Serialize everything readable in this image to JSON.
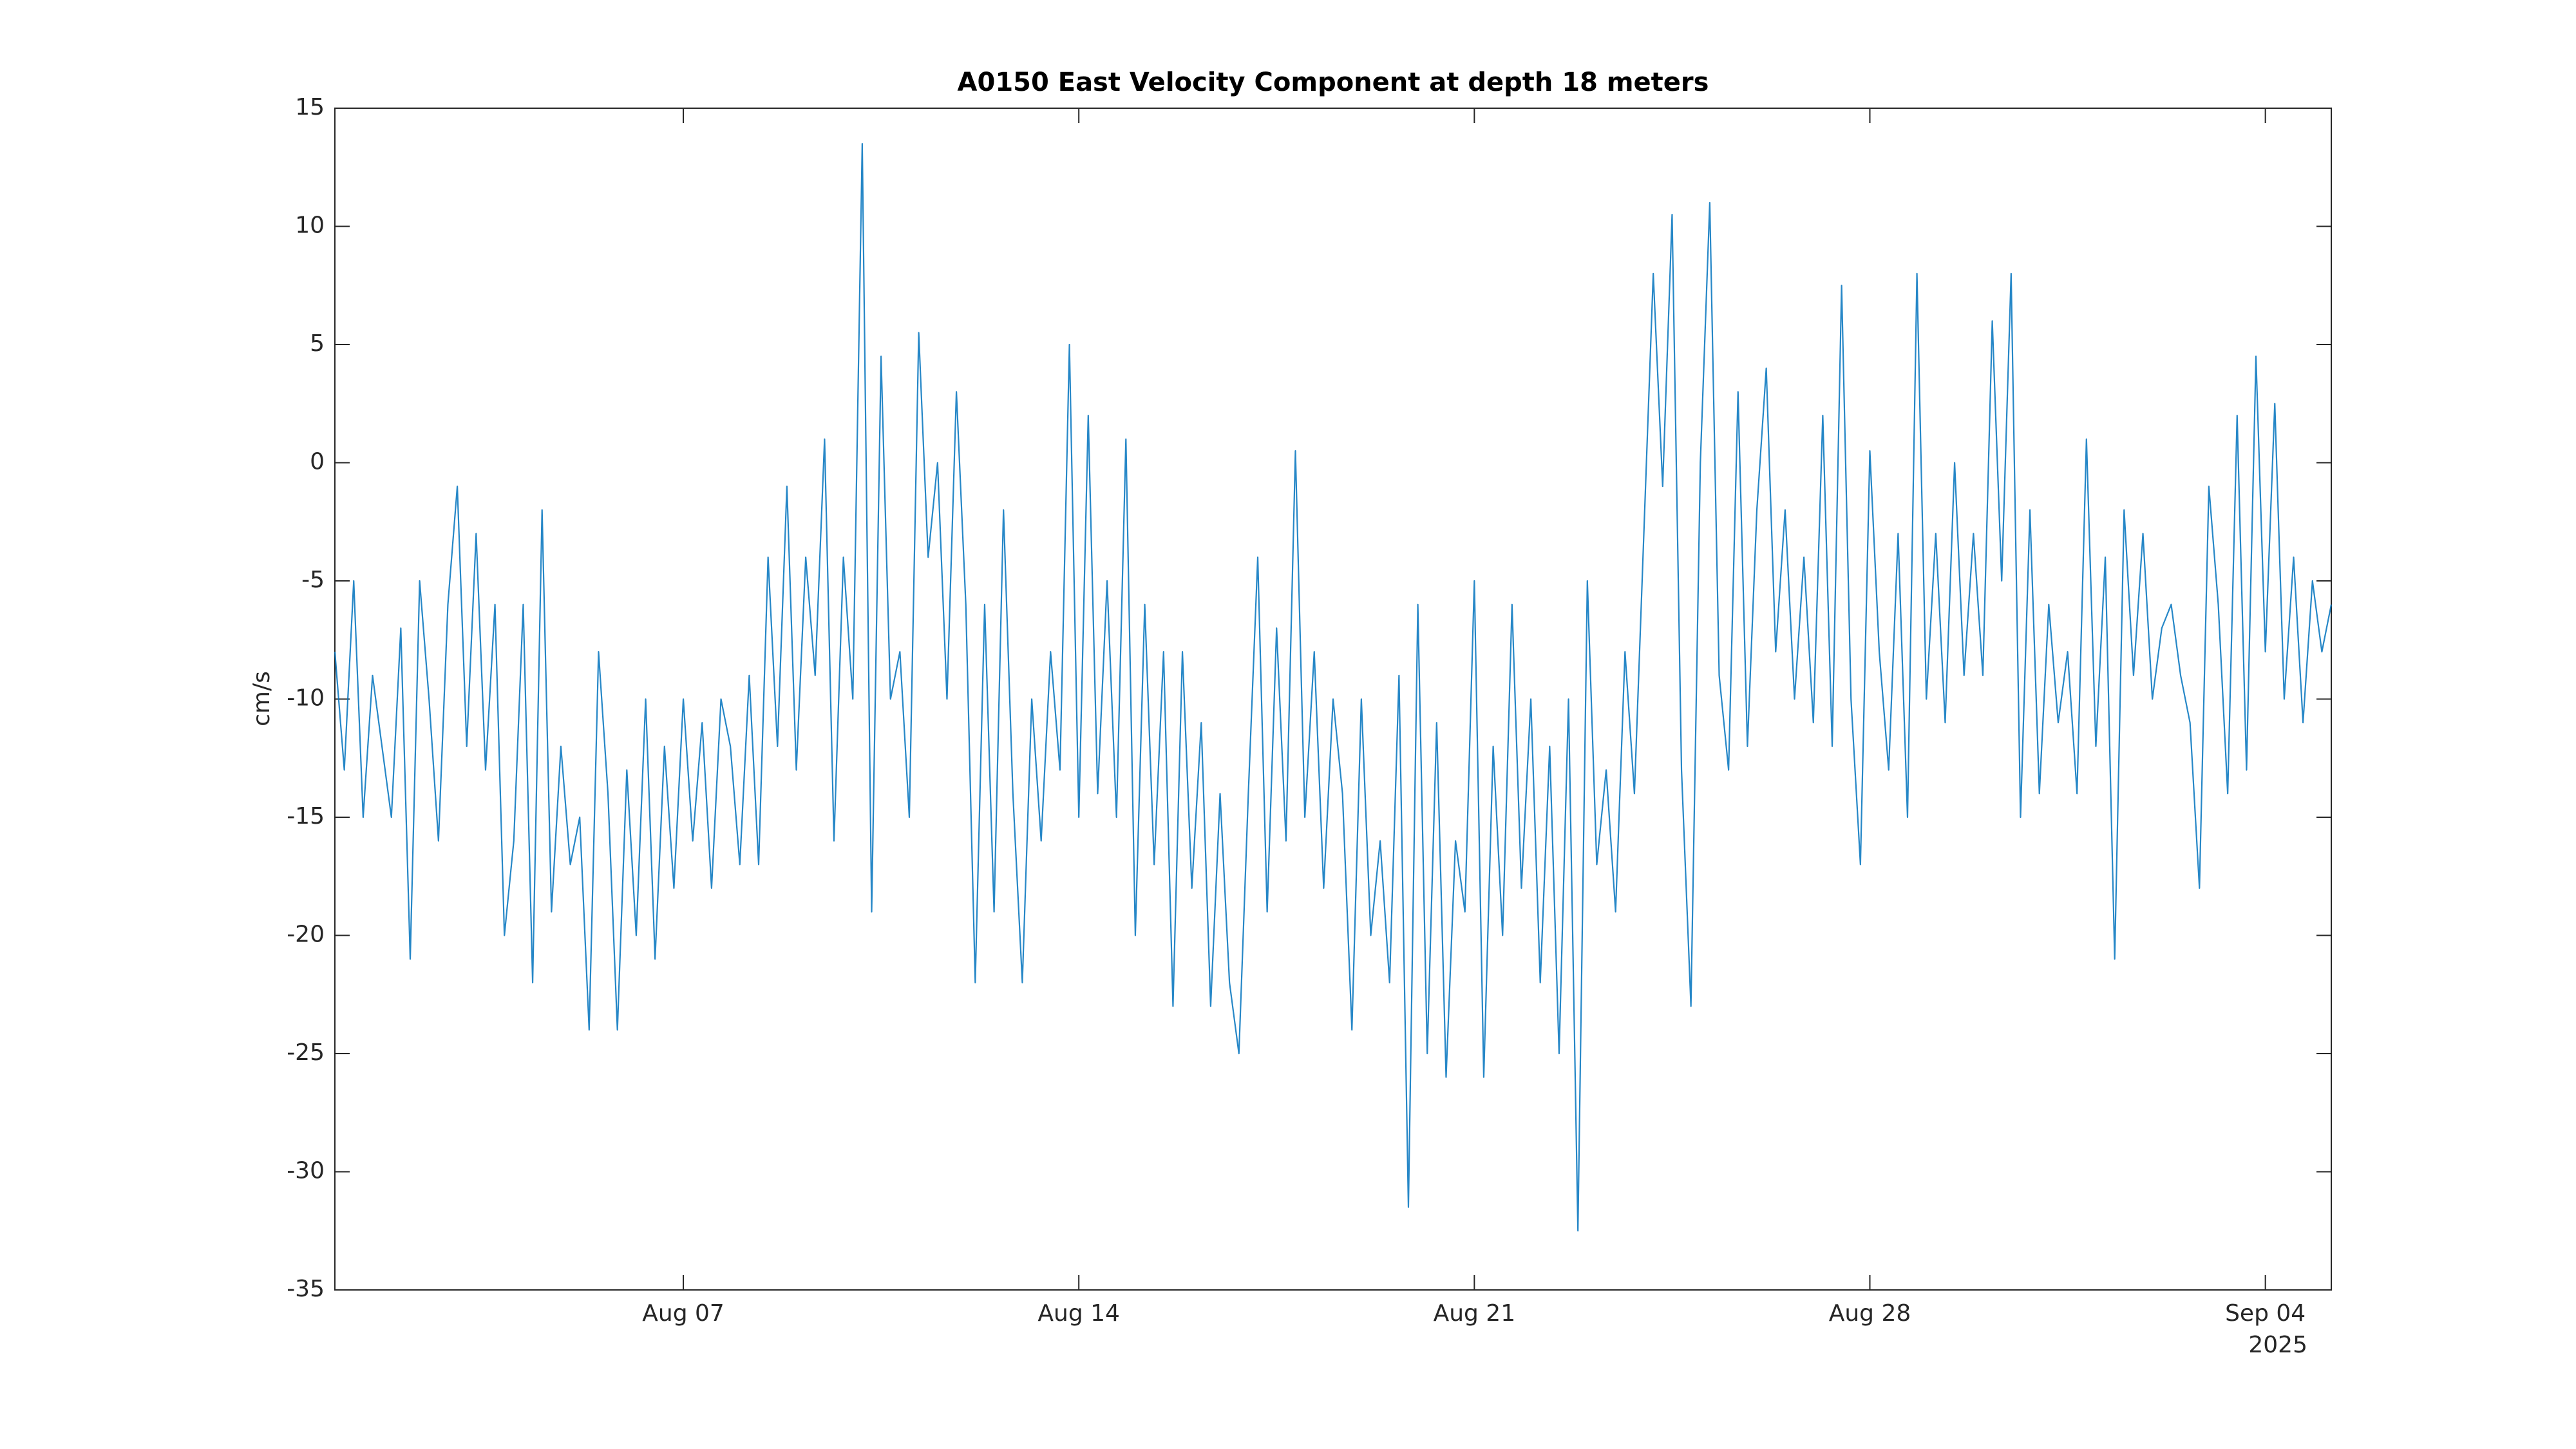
{
  "chart_data": {
    "type": "line",
    "title": "A0150 East Velocity Component at depth 18 meters",
    "ylabel": "cm/s",
    "x_secondary_label": "2025",
    "color": "#0072bd",
    "xlim": [
      "2025-07-31T20:00Z",
      "2025-09-05T04:00Z"
    ],
    "xticks": [
      {
        "value": "2025-08-07T00:00Z",
        "label": "Aug 07"
      },
      {
        "value": "2025-08-14T00:00Z",
        "label": "Aug 14"
      },
      {
        "value": "2025-08-21T00:00Z",
        "label": "Aug 21"
      },
      {
        "value": "2025-08-28T00:00Z",
        "label": "Aug 28"
      },
      {
        "value": "2025-09-04T00:00Z",
        "label": "Sep 04"
      }
    ],
    "ylim": [
      -35,
      15
    ],
    "yticks": [
      -35,
      -30,
      -25,
      -20,
      -15,
      -10,
      -5,
      0,
      5,
      10,
      15
    ],
    "x": [
      "2025-07-31T20:00Z",
      "2025-08-01T00:00Z",
      "2025-08-01T04:00Z",
      "2025-08-01T08:00Z",
      "2025-08-01T12:00Z",
      "2025-08-01T16:00Z",
      "2025-08-01T20:00Z",
      "2025-08-02T00:00Z",
      "2025-08-02T04:00Z",
      "2025-08-02T08:00Z",
      "2025-08-02T12:00Z",
      "2025-08-02T16:00Z",
      "2025-08-02T20:00Z",
      "2025-08-03T00:00Z",
      "2025-08-03T04:00Z",
      "2025-08-03T08:00Z",
      "2025-08-03T12:00Z",
      "2025-08-03T16:00Z",
      "2025-08-03T20:00Z",
      "2025-08-04T00:00Z",
      "2025-08-04T04:00Z",
      "2025-08-04T08:00Z",
      "2025-08-04T12:00Z",
      "2025-08-04T16:00Z",
      "2025-08-04T20:00Z",
      "2025-08-05T00:00Z",
      "2025-08-05T04:00Z",
      "2025-08-05T08:00Z",
      "2025-08-05T12:00Z",
      "2025-08-05T16:00Z",
      "2025-08-05T20:00Z",
      "2025-08-06T00:00Z",
      "2025-08-06T04:00Z",
      "2025-08-06T08:00Z",
      "2025-08-06T12:00Z",
      "2025-08-06T16:00Z",
      "2025-08-06T20:00Z",
      "2025-08-07T00:00Z",
      "2025-08-07T04:00Z",
      "2025-08-07T08:00Z",
      "2025-08-07T12:00Z",
      "2025-08-07T16:00Z",
      "2025-08-07T20:00Z",
      "2025-08-08T00:00Z",
      "2025-08-08T04:00Z",
      "2025-08-08T08:00Z",
      "2025-08-08T12:00Z",
      "2025-08-08T16:00Z",
      "2025-08-08T20:00Z",
      "2025-08-09T00:00Z",
      "2025-08-09T04:00Z",
      "2025-08-09T08:00Z",
      "2025-08-09T12:00Z",
      "2025-08-09T16:00Z",
      "2025-08-09T20:00Z",
      "2025-08-10T00:00Z",
      "2025-08-10T04:00Z",
      "2025-08-10T08:00Z",
      "2025-08-10T12:00Z",
      "2025-08-10T16:00Z",
      "2025-08-10T20:00Z",
      "2025-08-11T00:00Z",
      "2025-08-11T04:00Z",
      "2025-08-11T08:00Z",
      "2025-08-11T12:00Z",
      "2025-08-11T16:00Z",
      "2025-08-11T20:00Z",
      "2025-08-12T00:00Z",
      "2025-08-12T04:00Z",
      "2025-08-12T08:00Z",
      "2025-08-12T12:00Z",
      "2025-08-12T16:00Z",
      "2025-08-12T20:00Z",
      "2025-08-13T00:00Z",
      "2025-08-13T04:00Z",
      "2025-08-13T08:00Z",
      "2025-08-13T12:00Z",
      "2025-08-13T16:00Z",
      "2025-08-13T20:00Z",
      "2025-08-14T00:00Z",
      "2025-08-14T04:00Z",
      "2025-08-14T08:00Z",
      "2025-08-14T12:00Z",
      "2025-08-14T16:00Z",
      "2025-08-14T20:00Z",
      "2025-08-15T00:00Z",
      "2025-08-15T04:00Z",
      "2025-08-15T08:00Z",
      "2025-08-15T12:00Z",
      "2025-08-15T16:00Z",
      "2025-08-15T20:00Z",
      "2025-08-16T00:00Z",
      "2025-08-16T04:00Z",
      "2025-08-16T08:00Z",
      "2025-08-16T12:00Z",
      "2025-08-16T16:00Z",
      "2025-08-16T20:00Z",
      "2025-08-17T00:00Z",
      "2025-08-17T04:00Z",
      "2025-08-17T08:00Z",
      "2025-08-17T12:00Z",
      "2025-08-17T16:00Z",
      "2025-08-17T20:00Z",
      "2025-08-18T00:00Z",
      "2025-08-18T04:00Z",
      "2025-08-18T08:00Z",
      "2025-08-18T12:00Z",
      "2025-08-18T16:00Z",
      "2025-08-18T20:00Z",
      "2025-08-19T00:00Z",
      "2025-08-19T04:00Z",
      "2025-08-19T08:00Z",
      "2025-08-19T12:00Z",
      "2025-08-19T16:00Z",
      "2025-08-19T20:00Z",
      "2025-08-20T00:00Z",
      "2025-08-20T04:00Z",
      "2025-08-20T08:00Z",
      "2025-08-20T12:00Z",
      "2025-08-20T16:00Z",
      "2025-08-20T20:00Z",
      "2025-08-21T00:00Z",
      "2025-08-21T04:00Z",
      "2025-08-21T08:00Z",
      "2025-08-21T12:00Z",
      "2025-08-21T16:00Z",
      "2025-08-21T20:00Z",
      "2025-08-22T00:00Z",
      "2025-08-22T04:00Z",
      "2025-08-22T08:00Z",
      "2025-08-22T12:00Z",
      "2025-08-22T16:00Z",
      "2025-08-22T20:00Z",
      "2025-08-23T00:00Z",
      "2025-08-23T04:00Z",
      "2025-08-23T08:00Z",
      "2025-08-23T12:00Z",
      "2025-08-23T16:00Z",
      "2025-08-23T20:00Z",
      "2025-08-24T00:00Z",
      "2025-08-24T04:00Z",
      "2025-08-24T08:00Z",
      "2025-08-24T12:00Z",
      "2025-08-24T16:00Z",
      "2025-08-24T20:00Z",
      "2025-08-25T00:00Z",
      "2025-08-25T04:00Z",
      "2025-08-25T08:00Z",
      "2025-08-25T12:00Z",
      "2025-08-25T16:00Z",
      "2025-08-25T20:00Z",
      "2025-08-26T00:00Z",
      "2025-08-26T04:00Z",
      "2025-08-26T08:00Z",
      "2025-08-26T12:00Z",
      "2025-08-26T16:00Z",
      "2025-08-26T20:00Z",
      "2025-08-27T00:00Z",
      "2025-08-27T04:00Z",
      "2025-08-27T08:00Z",
      "2025-08-27T12:00Z",
      "2025-08-27T16:00Z",
      "2025-08-27T20:00Z",
      "2025-08-28T00:00Z",
      "2025-08-28T04:00Z",
      "2025-08-28T08:00Z",
      "2025-08-28T12:00Z",
      "2025-08-28T16:00Z",
      "2025-08-28T20:00Z",
      "2025-08-29T00:00Z",
      "2025-08-29T04:00Z",
      "2025-08-29T08:00Z",
      "2025-08-29T12:00Z",
      "2025-08-29T16:00Z",
      "2025-08-29T20:00Z",
      "2025-08-30T00:00Z",
      "2025-08-30T04:00Z",
      "2025-08-30T08:00Z",
      "2025-08-30T12:00Z",
      "2025-08-30T16:00Z",
      "2025-08-30T20:00Z",
      "2025-08-31T00:00Z",
      "2025-08-31T04:00Z",
      "2025-08-31T08:00Z",
      "2025-08-31T12:00Z",
      "2025-08-31T16:00Z",
      "2025-08-31T20:00Z",
      "2025-09-01T00:00Z",
      "2025-09-01T04:00Z",
      "2025-09-01T08:00Z",
      "2025-09-01T12:00Z",
      "2025-09-01T16:00Z",
      "2025-09-01T20:00Z",
      "2025-09-02T00:00Z",
      "2025-09-02T04:00Z",
      "2025-09-02T08:00Z",
      "2025-09-02T12:00Z",
      "2025-09-02T16:00Z",
      "2025-09-02T20:00Z",
      "2025-09-03T00:00Z",
      "2025-09-03T04:00Z",
      "2025-09-03T08:00Z",
      "2025-09-03T12:00Z",
      "2025-09-03T16:00Z",
      "2025-09-03T20:00Z",
      "2025-09-04T00:00Z",
      "2025-09-04T04:00Z",
      "2025-09-04T08:00Z",
      "2025-09-04T12:00Z",
      "2025-09-04T16:00Z",
      "2025-09-04T20:00Z",
      "2025-09-05T00:00Z",
      "2025-09-05T04:00Z"
    ],
    "values": [
      -8,
      -13,
      -5,
      -15,
      -9,
      -12,
      -15,
      -7,
      -21,
      -5,
      -10,
      -16,
      -6,
      -1,
      -12,
      -3,
      -13,
      -6,
      -20,
      -16,
      -6,
      -22,
      -2,
      -19,
      -12,
      -17,
      -15,
      -24,
      -8,
      -14,
      -24,
      -13,
      -20,
      -10,
      -21,
      -12,
      -18,
      -10,
      -16,
      -11,
      -18,
      -10,
      -12,
      -17,
      -9,
      -17,
      -4,
      -12,
      -1,
      -13,
      -4,
      -9,
      1,
      -16,
      -4,
      -10,
      13.5,
      -19,
      4.5,
      -10,
      -8,
      -15,
      5.5,
      -4,
      0,
      -10,
      3,
      -6,
      -22,
      -6,
      -19,
      -2,
      -14,
      -22,
      -10,
      -16,
      -8,
      -13,
      5,
      -15,
      2,
      -14,
      -5,
      -15,
      1,
      -20,
      -6,
      -17,
      -8,
      -23,
      -8,
      -18,
      -11,
      -23,
      -14,
      -22,
      -25,
      -14,
      -4,
      -19,
      -7,
      -16,
      0.5,
      -15,
      -8,
      -18,
      -10,
      -14,
      -24,
      -10,
      -20,
      -16,
      -22,
      -9,
      -31.5,
      -6,
      -25,
      -11,
      -26,
      -16,
      -19,
      -5,
      -26,
      -12,
      -20,
      -6,
      -18,
      -10,
      -22,
      -12,
      -25,
      -10,
      -32.5,
      -5,
      -17,
      -13,
      -19,
      -8,
      -14,
      -3,
      8,
      -1,
      10.5,
      -13,
      -23,
      0,
      11,
      -9,
      -13,
      3,
      -12,
      -2,
      4,
      -8,
      -2,
      -10,
      -4,
      -11,
      2,
      -12,
      7.5,
      -10,
      -17,
      0.5,
      -8,
      -13,
      -3,
      -15,
      8,
      -10,
      -3,
      -11,
      0,
      -9,
      -3,
      -9,
      6,
      -5,
      8,
      -15,
      -2,
      -14,
      -6,
      -11,
      -8,
      -14,
      1,
      -12,
      -4,
      -21,
      -2,
      -9,
      -3,
      -10,
      -7,
      -6,
      -9,
      -11,
      -18,
      -1,
      -6,
      -14,
      2,
      -13,
      4.5,
      -8,
      2.5,
      -10,
      -4,
      -11,
      -5,
      -8,
      -6
    ]
  }
}
